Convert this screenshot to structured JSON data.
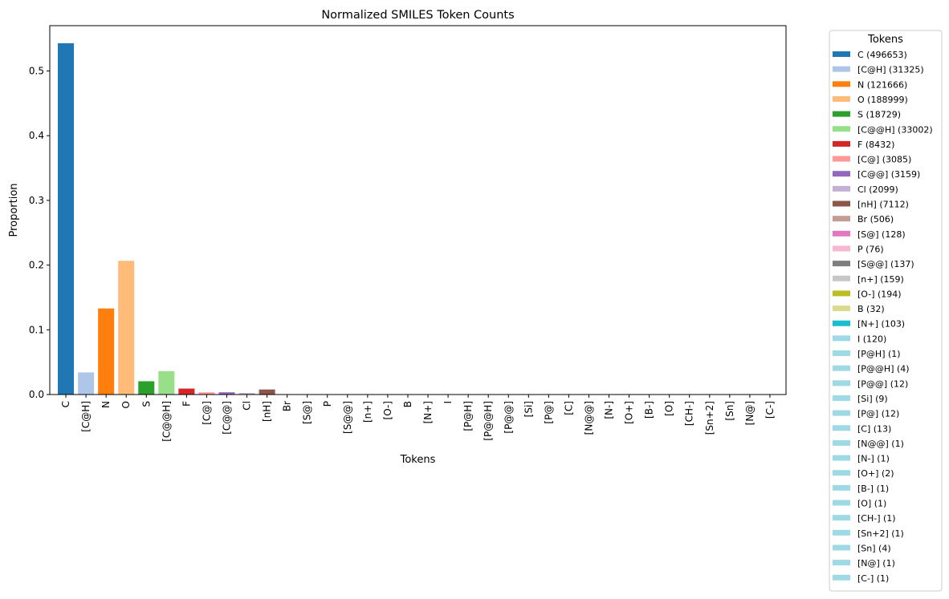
{
  "chart_data": {
    "type": "bar",
    "title": "Normalized SMILES Token Counts",
    "xlabel": "Tokens",
    "ylabel": "Proportion",
    "ylim": [
      0,
      0.57
    ],
    "yticks": [
      0.0,
      0.1,
      0.2,
      0.3,
      0.4,
      0.5
    ],
    "ytick_labels": [
      "0.0",
      "0.1",
      "0.2",
      "0.3",
      "0.4",
      "0.5"
    ],
    "categories": [
      "C",
      "[C@H]",
      "N",
      "O",
      "S",
      "[C@@H]",
      "F",
      "[C@]",
      "[C@@]",
      "Cl",
      "[nH]",
      "Br",
      "[S@]",
      "P",
      "[S@@]",
      "[n+]",
      "[O-]",
      "B",
      "[N+]",
      "I",
      "[P@H]",
      "[P@@H]",
      "[P@@]",
      "[Si]",
      "[P@]",
      "[C]",
      "[N@@]",
      "[N-]",
      "[O+]",
      "[B-]",
      "[O]",
      "[CH-]",
      "[Sn+2]",
      "[Sn]",
      "[N@]",
      "[C-]"
    ],
    "counts": [
      496653,
      31325,
      121666,
      188999,
      18729,
      33002,
      8432,
      3085,
      3159,
      2099,
      7112,
      506,
      128,
      76,
      137,
      159,
      194,
      32,
      103,
      120,
      1,
      4,
      12,
      9,
      12,
      13,
      1,
      1,
      2,
      1,
      1,
      1,
      1,
      4,
      1,
      1
    ],
    "values": [
      0.5429,
      0.0342,
      0.133,
      0.2066,
      0.0205,
      0.0361,
      0.0092,
      0.0034,
      0.0035,
      0.0023,
      0.0078,
      0.00055,
      0.00014,
      8e-05,
      0.00015,
      0.00017,
      0.00021,
      3e-05,
      0.00011,
      0.00013,
      1e-06,
      4e-06,
      1.3e-05,
      1e-05,
      1.3e-05,
      1.4e-05,
      1e-06,
      1e-06,
      2e-06,
      1e-06,
      1e-06,
      1e-06,
      1e-06,
      4e-06,
      1e-06,
      1e-06
    ],
    "colors": [
      "#1f77b4",
      "#aec7e8",
      "#ff7f0e",
      "#ffbb78",
      "#2ca02c",
      "#98df8a",
      "#d62728",
      "#ff9896",
      "#9467bd",
      "#c5b0d5",
      "#8c564b",
      "#c49c94",
      "#e377c2",
      "#f7b6d2",
      "#7f7f7f",
      "#c7c7c7",
      "#bcbd22",
      "#dbdb8d",
      "#17becf",
      "#9edae5",
      "#9edae5",
      "#9edae5",
      "#9edae5",
      "#9edae5",
      "#9edae5",
      "#9edae5",
      "#9edae5",
      "#9edae5",
      "#9edae5",
      "#9edae5",
      "#9edae5",
      "#9edae5",
      "#9edae5",
      "#9edae5",
      "#9edae5",
      "#9edae5"
    ],
    "grid": false,
    "legend": {
      "title": "Tokens",
      "placement": "outside-right",
      "entries": [
        "C (496653)",
        "[C@H] (31325)",
        "N (121666)",
        "O (188999)",
        "S (18729)",
        "[C@@H] (33002)",
        "F (8432)",
        "[C@] (3085)",
        "[C@@] (3159)",
        "Cl (2099)",
        "[nH] (7112)",
        "Br (506)",
        "[S@] (128)",
        "P (76)",
        "[S@@] (137)",
        "[n+] (159)",
        "[O-] (194)",
        "B (32)",
        "[N+] (103)",
        "I (120)",
        "[P@H] (1)",
        "[P@@H] (4)",
        "[P@@] (12)",
        "[Si] (9)",
        "[P@] (12)",
        "[C] (13)",
        "[N@@] (1)",
        "[N-] (1)",
        "[O+] (2)",
        "[B-] (1)",
        "[O] (1)",
        "[CH-] (1)",
        "[Sn+2] (1)",
        "[Sn] (4)",
        "[N@] (1)",
        "[C-] (1)"
      ]
    }
  }
}
